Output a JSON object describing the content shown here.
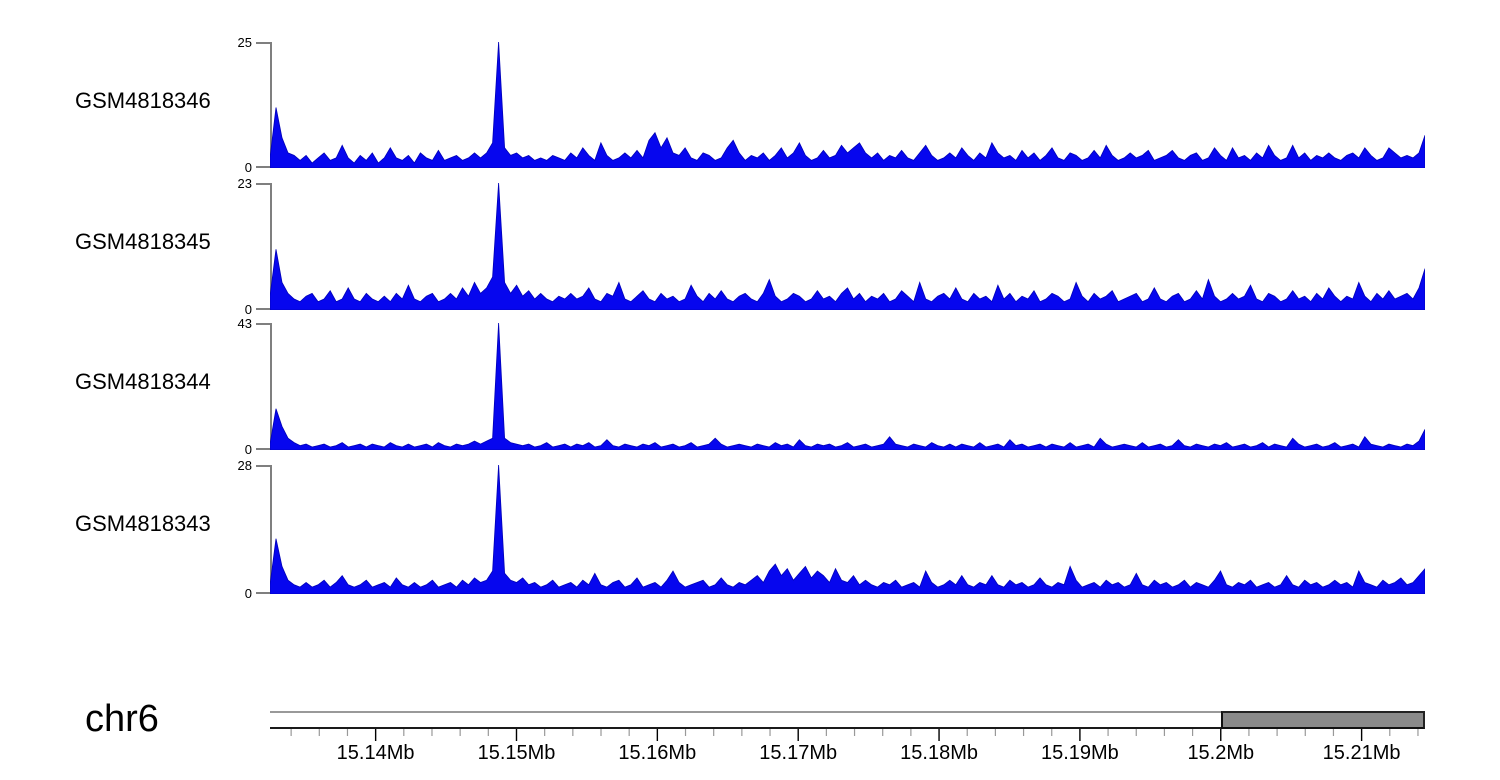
{
  "figure": {
    "background": "#ffffff",
    "text_color": "#000000"
  },
  "chart_data": {
    "type": "area",
    "title": "",
    "description": "Genome browser read-coverage tracks on chr6",
    "signal_color": "#0606ee",
    "signal_edge_color": "#0000b8",
    "bracket_color": "#7f7f7f",
    "minor_tick_color": "#999999",
    "major_tick_color": "#000000",
    "tracks": [
      {
        "label": "GSM4818346",
        "ymax": 25,
        "ymin": 0,
        "values": [
          2,
          12,
          6,
          3,
          2.5,
          1.5,
          2.5,
          1,
          2,
          3,
          1.5,
          2,
          4.5,
          2,
          1,
          2.5,
          1.5,
          3,
          1,
          2,
          4,
          2,
          1.5,
          2.5,
          1,
          3,
          2,
          1.5,
          3.5,
          1.5,
          2,
          2.5,
          1.5,
          2,
          3,
          2,
          3,
          5,
          25,
          4,
          2.5,
          3,
          2,
          2.5,
          1.5,
          2,
          1.5,
          2.5,
          2,
          1.5,
          3,
          2,
          4,
          2.5,
          1.5,
          5,
          2.5,
          1.5,
          2,
          3,
          2,
          3.5,
          2,
          5.5,
          7,
          4,
          6,
          3,
          2.5,
          4,
          2,
          1.5,
          3,
          2.5,
          1.5,
          2,
          4,
          5.5,
          3,
          1.5,
          2.5,
          2,
          3,
          1.5,
          2.5,
          4,
          2,
          3,
          5,
          2.5,
          1.5,
          2,
          3.5,
          2,
          2.5,
          4.5,
          3,
          4,
          5,
          3,
          2,
          3,
          1.5,
          2.5,
          2,
          3.5,
          2,
          1.5,
          3,
          4.5,
          2.5,
          1.5,
          2,
          3,
          2,
          4,
          2.5,
          1.5,
          3,
          2,
          5,
          3,
          2,
          2.5,
          1.5,
          3.5,
          2,
          3,
          1.5,
          2.5,
          4,
          2,
          1.5,
          3,
          2.5,
          1.5,
          2,
          3.5,
          2,
          4.5,
          2.5,
          1.5,
          2,
          3,
          2,
          2.5,
          3.5,
          1.5,
          2,
          2.5,
          3.5,
          2,
          1.5,
          2.5,
          3,
          1.5,
          2,
          4,
          2.5,
          1.5,
          4,
          2,
          2.5,
          1.5,
          3,
          2,
          4.5,
          2.5,
          1.5,
          2,
          4.5,
          2,
          3,
          1.5,
          2.5,
          2,
          3,
          2,
          1.5,
          2.5,
          3,
          2,
          4,
          2.5,
          1.5,
          2,
          4,
          3,
          2,
          2.5,
          2,
          3,
          6.5
        ]
      },
      {
        "label": "GSM4818345",
        "ymax": 23,
        "ymin": 0,
        "values": [
          2.5,
          11,
          5,
          3,
          2,
          1.5,
          2.5,
          3,
          1.5,
          2,
          3.5,
          1.5,
          2,
          4,
          2,
          1.5,
          3,
          2,
          1.5,
          2.5,
          1.5,
          3,
          2,
          4.5,
          2,
          1.5,
          2.5,
          3,
          1.5,
          2,
          3,
          2,
          4,
          2.5,
          5,
          3,
          4,
          6,
          23,
          5,
          3,
          4.5,
          2.5,
          3.5,
          2,
          3,
          2,
          1.5,
          2.5,
          2,
          3,
          2,
          2.5,
          4,
          2,
          1.5,
          3,
          2.5,
          5,
          2,
          1.5,
          2.5,
          3.5,
          2,
          1.5,
          3,
          2,
          2.5,
          1.5,
          2,
          4.5,
          2.5,
          1.5,
          3,
          2,
          3.5,
          2,
          1.5,
          2.5,
          3,
          2,
          1.5,
          3,
          5.5,
          2.5,
          1.5,
          2,
          3,
          2.5,
          1.5,
          2,
          3.5,
          2,
          2.5,
          1.5,
          3,
          4,
          2,
          3,
          1.5,
          2.5,
          2,
          3,
          1.5,
          2,
          3.5,
          2.5,
          1.5,
          5,
          2,
          1.5,
          2.5,
          3,
          2,
          4,
          2,
          1.5,
          3,
          2,
          2.5,
          1.5,
          4.5,
          2,
          3,
          1.5,
          2.5,
          2,
          3.5,
          1.5,
          2,
          3,
          2.5,
          1.5,
          2,
          5,
          2.5,
          1.5,
          3,
          2,
          2.5,
          3.5,
          1.5,
          2,
          2.5,
          3,
          1.5,
          2,
          4,
          2,
          1.5,
          2.5,
          3,
          1.5,
          2,
          3.5,
          2,
          5.5,
          2.5,
          1.5,
          2,
          3,
          2,
          2.5,
          4.5,
          2,
          1.5,
          3,
          2.5,
          1.5,
          2,
          3.5,
          2,
          2.5,
          1.5,
          3,
          2,
          4,
          2.5,
          1.5,
          2.5,
          2,
          5,
          2.5,
          1.5,
          3,
          2,
          3.5,
          2,
          2.5,
          3,
          2,
          4,
          7.5
        ]
      },
      {
        "label": "GSM4818344",
        "ymax": 43,
        "ymin": 0,
        "values": [
          2,
          14,
          8,
          4,
          2.5,
          1.5,
          2,
          1,
          1.5,
          2,
          1,
          1.5,
          2.5,
          1,
          1.5,
          2,
          1,
          2,
          1.5,
          1,
          2.5,
          1.5,
          1,
          2,
          1,
          1.5,
          2,
          1,
          2.5,
          1.5,
          1,
          2,
          1.5,
          2,
          3,
          2,
          3,
          4,
          43,
          4,
          2.5,
          2,
          1.5,
          2,
          1,
          1.5,
          2.5,
          1,
          1.5,
          2,
          1,
          2,
          1.5,
          2.5,
          1,
          1.5,
          3.5,
          1.5,
          1,
          2,
          1.5,
          1,
          2,
          1.5,
          2.5,
          1,
          1.5,
          2,
          1,
          1.5,
          2.5,
          1,
          1.5,
          2,
          4,
          2,
          1,
          1.5,
          2,
          1.5,
          1,
          2,
          1.5,
          1,
          2.5,
          1.5,
          2,
          1,
          3.5,
          1.5,
          1,
          2,
          1.5,
          2,
          1,
          1.5,
          2.5,
          1,
          1.5,
          2,
          1,
          1.5,
          2,
          4.5,
          2,
          1.5,
          1,
          2,
          1.5,
          1,
          2.5,
          1.5,
          1,
          2,
          1,
          2,
          1.5,
          1,
          2.5,
          1,
          1.5,
          2,
          1,
          3.5,
          1.5,
          2,
          1,
          1.5,
          2,
          1,
          2,
          1.5,
          1,
          2.5,
          1,
          1.5,
          2,
          1,
          4,
          2,
          1,
          1.5,
          2,
          1.5,
          1,
          2.5,
          1,
          1.5,
          2,
          1,
          1.5,
          3.5,
          1.5,
          1,
          2,
          1.5,
          1,
          2,
          1.5,
          2.5,
          1,
          1.5,
          2,
          1,
          1.5,
          2.5,
          1,
          2,
          1.5,
          1,
          4,
          2,
          1,
          1.5,
          2,
          1,
          1.5,
          2.5,
          1,
          1.5,
          2,
          1,
          4.5,
          2,
          1.5,
          1,
          2,
          1.5,
          1,
          2,
          1.5,
          3,
          7
        ]
      },
      {
        "label": "GSM4818343",
        "ymax": 28,
        "ymin": 0,
        "values": [
          2,
          12,
          6,
          3,
          2,
          1.5,
          2.5,
          1.5,
          2,
          3,
          1.5,
          2.5,
          4,
          2,
          1.5,
          2,
          3,
          1.5,
          2,
          2.5,
          1.5,
          3.5,
          2,
          1.5,
          2.5,
          1.5,
          2,
          3,
          1.5,
          2,
          2.5,
          1.5,
          3,
          2,
          3.5,
          2.5,
          3,
          5,
          28,
          4.5,
          3,
          2.5,
          3.5,
          2,
          2.5,
          1.5,
          2,
          3,
          1.5,
          2,
          2.5,
          1.5,
          3,
          2,
          4.5,
          2,
          1.5,
          2.5,
          3,
          1.5,
          2,
          3.5,
          1.5,
          2,
          2.5,
          1.5,
          3,
          5,
          2.5,
          1.5,
          2,
          2.5,
          3,
          1.5,
          2,
          3.5,
          2,
          1.5,
          2.5,
          2,
          3,
          4,
          2.5,
          5,
          6.5,
          4,
          5.5,
          3,
          4.5,
          6,
          3.5,
          5,
          4,
          2.5,
          5.5,
          3,
          2.5,
          4,
          2,
          3,
          2,
          1.5,
          2.5,
          2,
          3,
          1.5,
          2,
          2.5,
          1.5,
          5,
          2.5,
          1.5,
          2,
          3,
          2,
          4,
          2,
          1.5,
          2.5,
          2,
          4,
          2,
          1.5,
          3,
          2,
          2.5,
          1.5,
          2,
          3.5,
          2,
          1.5,
          2.5,
          2,
          6,
          3,
          1.5,
          2,
          2.5,
          1.5,
          3,
          2,
          2.5,
          1.5,
          2,
          4.5,
          2,
          1.5,
          3,
          2,
          2.5,
          1.5,
          2,
          3,
          1.5,
          2.5,
          2,
          1.5,
          3,
          5,
          2,
          1.5,
          2.5,
          2,
          3,
          1.5,
          2,
          2.5,
          1.5,
          2,
          4,
          2,
          1.5,
          3,
          2,
          2.5,
          1.5,
          2,
          3,
          2,
          2.5,
          1.5,
          5,
          2.5,
          2,
          1.5,
          3,
          2,
          2.5,
          3.5,
          2,
          2.5,
          4,
          5.5
        ]
      }
    ],
    "x_axis": {
      "chromosome": "chr6",
      "unit": "Mb",
      "start_mb": 15.1325,
      "end_mb": 15.2145,
      "minor_tick_step_mb": 0.002,
      "major_ticks": [
        {
          "mb": 15.14,
          "label": "15.14Mb"
        },
        {
          "mb": 15.15,
          "label": "15.15Mb"
        },
        {
          "mb": 15.16,
          "label": "15.16Mb"
        },
        {
          "mb": 15.17,
          "label": "15.17Mb"
        },
        {
          "mb": 15.18,
          "label": "15.18Mb"
        },
        {
          "mb": 15.19,
          "label": "15.19Mb"
        },
        {
          "mb": 15.2,
          "label": "15.2Mb"
        },
        {
          "mb": 15.21,
          "label": "15.21Mb"
        }
      ]
    },
    "highlight_region": {
      "start_mb": 15.2,
      "end_mb": 15.2145,
      "color": "#8a8a8a"
    }
  }
}
